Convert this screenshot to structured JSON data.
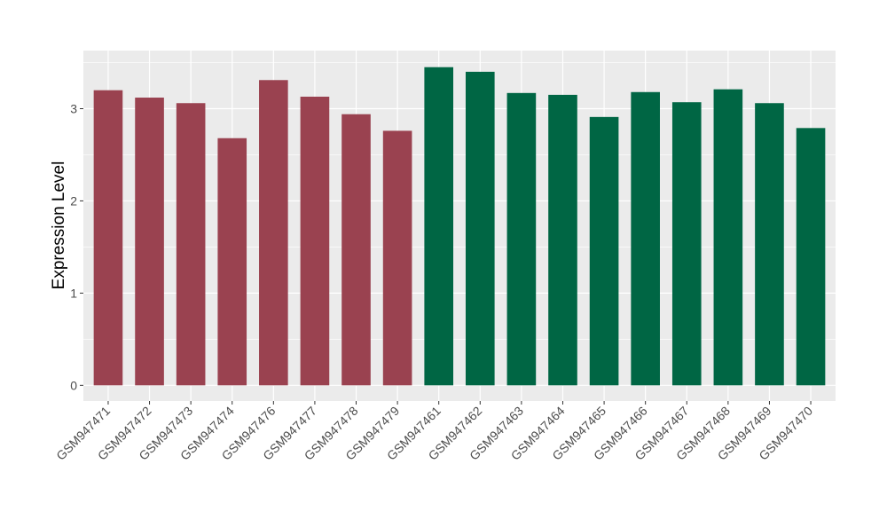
{
  "chart_data": {
    "type": "bar",
    "title": "",
    "xlabel": "",
    "ylabel": "Expression Level",
    "ylim": [
      -0.17,
      3.63
    ],
    "yticks": [
      0,
      1,
      2,
      3
    ],
    "grid": true,
    "categories": [
      "GSM947471",
      "GSM947472",
      "GSM947473",
      "GSM947474",
      "GSM947476",
      "GSM947477",
      "GSM947478",
      "GSM947479",
      "GSM947461",
      "GSM947462",
      "GSM947463",
      "GSM947464",
      "GSM947465",
      "GSM947466",
      "GSM947467",
      "GSM947468",
      "GSM947469",
      "GSM947470"
    ],
    "values": [
      3.2,
      3.12,
      3.06,
      2.68,
      3.31,
      3.13,
      2.94,
      2.76,
      3.45,
      3.4,
      3.17,
      3.15,
      2.91,
      3.18,
      3.07,
      3.21,
      3.06,
      2.79
    ],
    "groups": [
      0,
      0,
      0,
      0,
      0,
      0,
      0,
      0,
      1,
      1,
      1,
      1,
      1,
      1,
      1,
      1,
      1,
      1
    ],
    "colors": [
      "#9A4250",
      "#006644"
    ],
    "panel_background": "#EBEBEB"
  }
}
